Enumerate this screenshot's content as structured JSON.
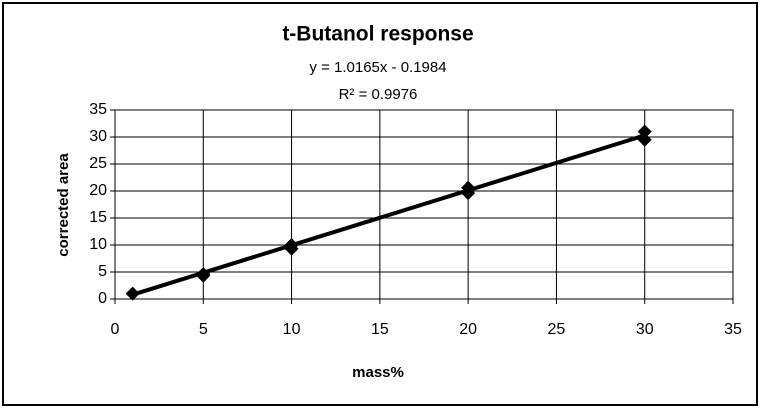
{
  "chart_data": {
    "type": "scatter",
    "title": "t-Butanol response",
    "annotations": [
      "y = 1.0165x - 0.1984",
      "R² = 0.9976"
    ],
    "x_label": "mass%",
    "y_label": "corrected area",
    "series": [
      {
        "color": "#000000",
        "x": [
          1,
          5,
          5,
          10,
          10,
          20,
          20,
          30,
          30
        ],
        "values": [
          1,
          4.6,
          4.3,
          10,
          9.3,
          20.6,
          19.6,
          31,
          29.5
        ]
      }
    ],
    "trendline": {
      "color": "#000000",
      "x": [
        1,
        30
      ],
      "values": [
        0.8,
        30.3
      ]
    },
    "xlim": [
      0,
      35
    ],
    "xticks": [
      0,
      5,
      10,
      15,
      20,
      25,
      30,
      35
    ],
    "ylim": [
      0,
      35
    ],
    "yticks": [
      0,
      5,
      10,
      15,
      20,
      25,
      30,
      35
    ],
    "grid": true
  }
}
